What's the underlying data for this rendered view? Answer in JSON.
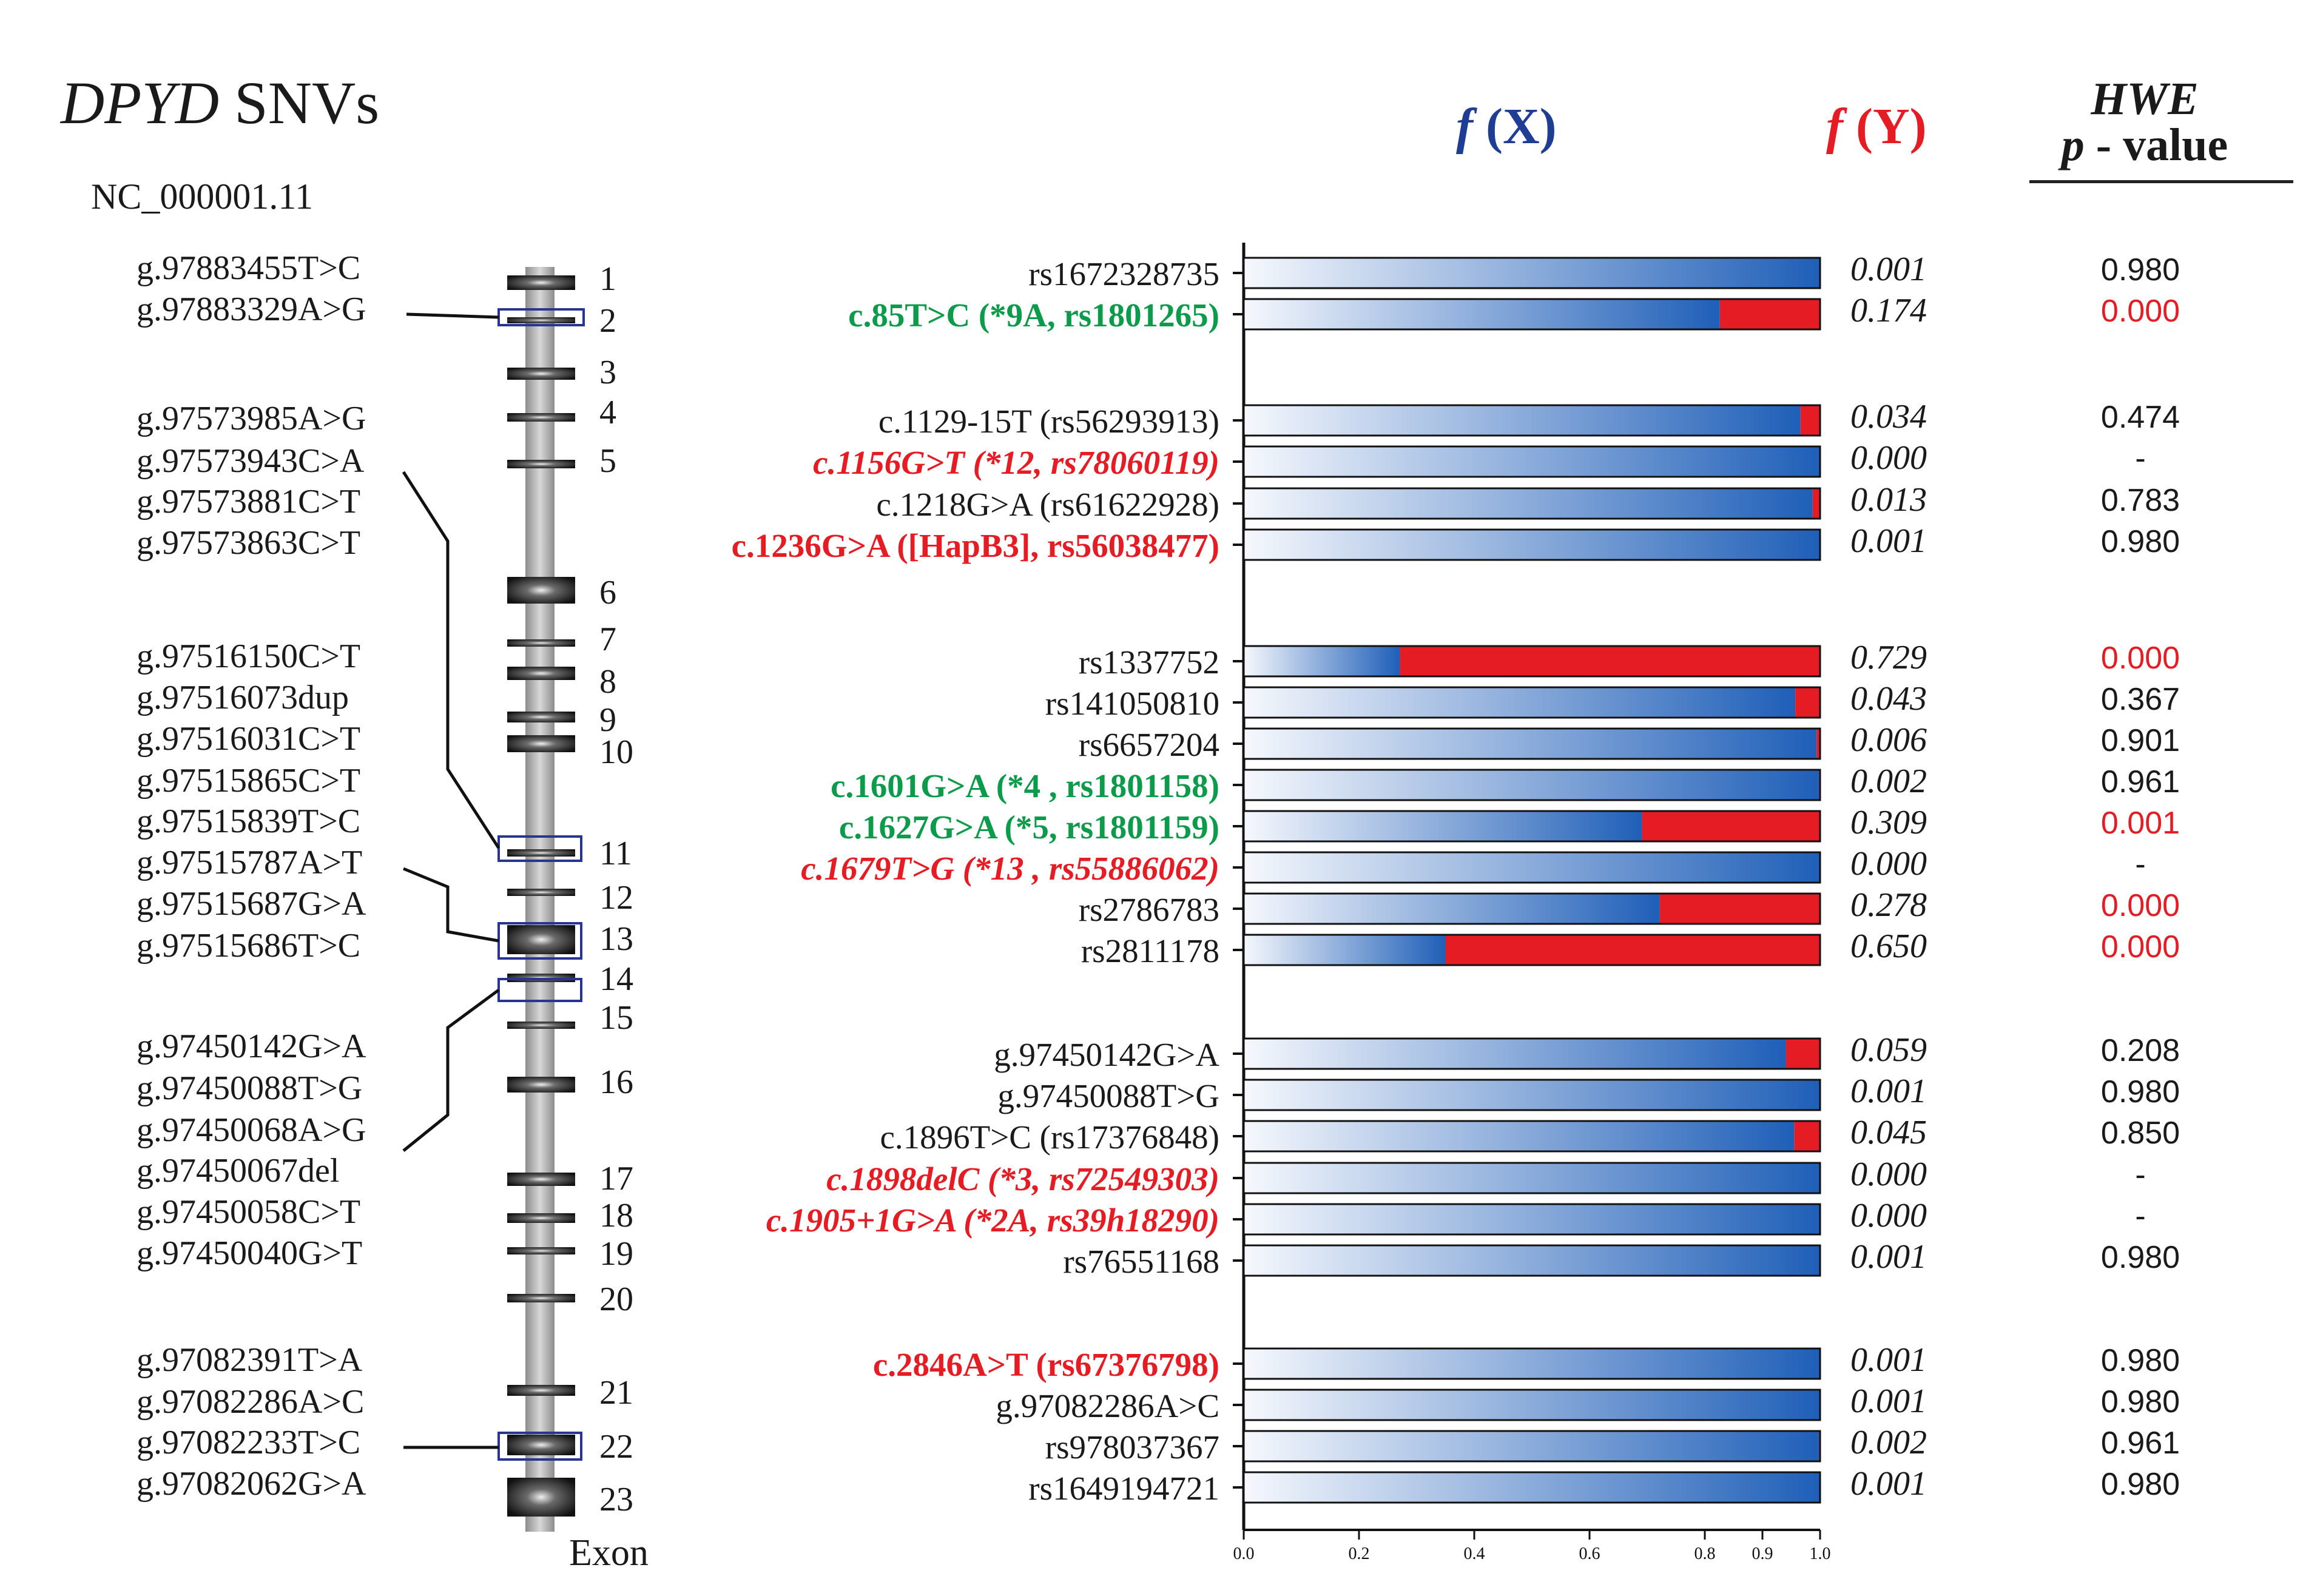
{
  "figure": {
    "title_italic": "DPYD",
    "title_rest": " SNVs",
    "accession": "NC_000001.11",
    "header_fx_f": "f",
    "header_fx_label": " (X)",
    "header_fy_f": "f",
    "header_fy_label": " (Y)",
    "hwe_title": "HWE",
    "hwe_subtitle_italic": "p",
    "hwe_subtitle_rest": " - value",
    "exon_axis_label": "Exon"
  },
  "colors": {
    "blue": "#1f5fb8",
    "blue_light": "#f4f7fc",
    "red": "#e51c23",
    "green": "#0c9b4a",
    "header_blue": "#1f3d93",
    "black": "#1a1a1a",
    "box_blue": "#283593"
  },
  "genomic_variants": [
    "g.97883455T>C",
    "g.97883329A>G",
    "g.97573985A>G",
    "g.97573943C>A",
    "g.97573881C>T",
    "g.97573863C>T",
    "g.97516150C>T",
    "g.97516073dup",
    "g.97516031C>T",
    "g.97515865C>T",
    "g.97515839T>C",
    "g.97515787A>T",
    "g.97515687G>A",
    "g.97515686T>C",
    "g.97450142G>A",
    "g.97450088T>G",
    "g.97450068A>G",
    "g.97450067del",
    "g.97450058C>T",
    "g.97450040G>T",
    "g.97082391T>A",
    "g.97082286A>C",
    "g.97082233T>C",
    "g.97082062G>A"
  ],
  "exons": [
    "1",
    "2",
    "3",
    "4",
    "5",
    "6",
    "7",
    "8",
    "9",
    "10",
    "11",
    "12",
    "13",
    "14",
    "15",
    "16",
    "17",
    "18",
    "19",
    "20",
    "21",
    "22",
    "23"
  ],
  "chart_data": {
    "type": "bar",
    "stacked": true,
    "orientation": "horizontal",
    "xlim": [
      0,
      1
    ],
    "xticks": [
      "0.0",
      "0.2",
      "0.4",
      "0.6",
      "0.8",
      "0.9",
      "1.0"
    ],
    "xtick_values": [
      0,
      0.2,
      0.4,
      0.6,
      0.8,
      0.9,
      1.0
    ],
    "series": [
      {
        "name": "f (X)"
      },
      {
        "name": "f (Y)"
      }
    ],
    "rows": [
      {
        "label": "rs1672328735",
        "style": "normal",
        "fy": 0.001,
        "fy_text": "0.001",
        "hwe": "0.980",
        "hwe_red": false
      },
      {
        "label": "c.85T>C (*9A, rs1801265)",
        "style": "green",
        "fy": 0.174,
        "fy_text": "0.174",
        "hwe": "0.000",
        "hwe_red": true
      },
      {
        "label": "c.1129-15T (rs56293913)",
        "style": "normal",
        "fy": 0.034,
        "fy_text": "0.034",
        "hwe": "0.474",
        "hwe_red": false
      },
      {
        "label": "c.1156G>T (*12, rs78060119)",
        "style": "red-italic",
        "fy": 0.0,
        "fy_text": "0.000",
        "hwe": "-",
        "hwe_red": false
      },
      {
        "label": "c.1218G>A (rs61622928)",
        "style": "normal",
        "fy": 0.013,
        "fy_text": "0.013",
        "hwe": "0.783",
        "hwe_red": false
      },
      {
        "label": "c.1236G>A ([HapB3], rs56038477)",
        "style": "red",
        "fy": 0.001,
        "fy_text": "0.001",
        "hwe": "0.980",
        "hwe_red": false
      },
      {
        "label": "rs1337752",
        "style": "normal",
        "fy": 0.729,
        "fy_text": "0.729",
        "hwe": "0.000",
        "hwe_red": true
      },
      {
        "label": "rs141050810",
        "style": "normal",
        "fy": 0.043,
        "fy_text": "0.043",
        "hwe": "0.367",
        "hwe_red": false
      },
      {
        "label": "rs6657204",
        "style": "normal",
        "fy": 0.006,
        "fy_text": "0.006",
        "hwe": "0.901",
        "hwe_red": false
      },
      {
        "label": "c.1601G>A (*4 , rs1801158)",
        "style": "green",
        "fy": 0.002,
        "fy_text": "0.002",
        "hwe": "0.961",
        "hwe_red": false
      },
      {
        "label": "c.1627G>A (*5, rs1801159)",
        "style": "green",
        "fy": 0.309,
        "fy_text": "0.309",
        "hwe": "0.001",
        "hwe_red": true
      },
      {
        "label": "c.1679T>G (*13 , rs55886062)",
        "style": "red-italic",
        "fy": 0.0,
        "fy_text": "0.000",
        "hwe": "-",
        "hwe_red": false
      },
      {
        "label": "rs2786783",
        "style": "normal",
        "fy": 0.278,
        "fy_text": "0.278",
        "hwe": "0.000",
        "hwe_red": true
      },
      {
        "label": "rs2811178",
        "style": "normal",
        "fy": 0.65,
        "fy_text": "0.650",
        "hwe": "0.000",
        "hwe_red": true
      },
      {
        "label": "g.97450142G>A",
        "style": "normal",
        "fy": 0.059,
        "fy_text": "0.059",
        "hwe": "0.208",
        "hwe_red": false
      },
      {
        "label": "g.97450088T>G",
        "style": "normal",
        "fy": 0.001,
        "fy_text": "0.001",
        "hwe": "0.980",
        "hwe_red": false
      },
      {
        "label": "c.1896T>C (rs17376848)",
        "style": "normal",
        "fy": 0.045,
        "fy_text": "0.045",
        "hwe": "0.850",
        "hwe_red": false
      },
      {
        "label": "c.1898delC (*3, rs72549303)",
        "style": "red-italic",
        "fy": 0.0,
        "fy_text": "0.000",
        "hwe": "-",
        "hwe_red": false
      },
      {
        "label": "c.1905+1G>A (*2A, rs39h18290)",
        "style": "red-italic",
        "fy": 0.0,
        "fy_text": "0.000",
        "hwe": "-",
        "hwe_red": false
      },
      {
        "label": "rs76551168",
        "style": "normal",
        "fy": 0.001,
        "fy_text": "0.001",
        "hwe": "0.980",
        "hwe_red": false
      },
      {
        "label": "c.2846A>T (rs67376798)",
        "style": "red",
        "fy": 0.001,
        "fy_text": "0.001",
        "hwe": "0.980",
        "hwe_red": false
      },
      {
        "label": "g.97082286A>C",
        "style": "normal",
        "fy": 0.001,
        "fy_text": "0.001",
        "hwe": "0.980",
        "hwe_red": false
      },
      {
        "label": "rs978037367",
        "style": "normal",
        "fy": 0.002,
        "fy_text": "0.002",
        "hwe": "0.961",
        "hwe_red": false
      },
      {
        "label": "rs1649194721",
        "style": "normal",
        "fy": 0.001,
        "fy_text": "0.001",
        "hwe": "0.980",
        "hwe_red": false
      }
    ]
  }
}
